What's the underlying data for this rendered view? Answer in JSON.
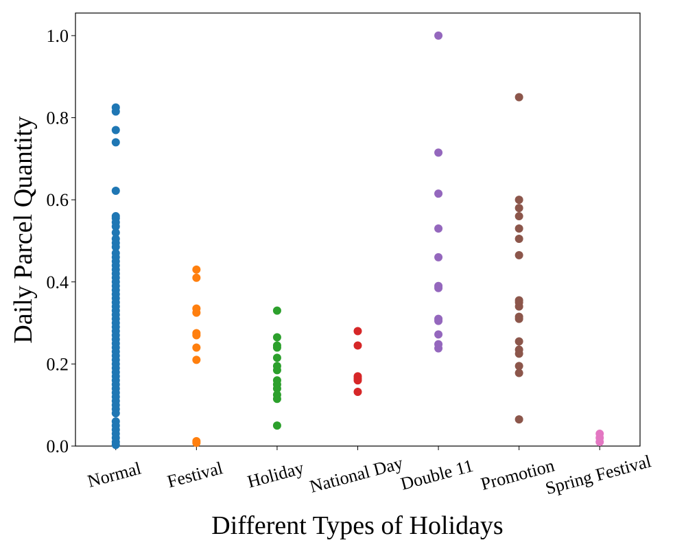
{
  "chart_data": {
    "type": "scatter",
    "xlabel": "Different Types of Holidays",
    "ylabel": "Daily Parcel Quantity",
    "categories": [
      "Normal",
      "Festival",
      "Holiday",
      "National Day",
      "Double 11",
      "Promotion",
      "Spring Festival"
    ],
    "colors": [
      "#1f77b4",
      "#ff7f0e",
      "#2ca02c",
      "#d62728",
      "#9467bd",
      "#8c564b",
      "#e377c2"
    ],
    "values": [
      [
        0.825,
        0.815,
        0.77,
        0.74,
        0.622,
        0.56,
        0.555,
        0.545,
        0.535,
        0.52,
        0.505,
        0.495,
        0.485,
        0.47,
        0.46,
        0.45,
        0.44,
        0.43,
        0.42,
        0.41,
        0.4,
        0.39,
        0.38,
        0.37,
        0.36,
        0.35,
        0.34,
        0.33,
        0.32,
        0.31,
        0.3,
        0.29,
        0.28,
        0.27,
        0.26,
        0.25,
        0.24,
        0.23,
        0.22,
        0.21,
        0.2,
        0.19,
        0.18,
        0.17,
        0.16,
        0.15,
        0.14,
        0.13,
        0.12,
        0.11,
        0.1,
        0.09,
        0.08,
        0.06,
        0.05,
        0.04,
        0.03,
        0.02,
        0.01,
        0.003
      ],
      [
        0.43,
        0.41,
        0.335,
        0.325,
        0.275,
        0.27,
        0.24,
        0.21,
        0.012,
        0.008
      ],
      [
        0.33,
        0.265,
        0.245,
        0.24,
        0.215,
        0.195,
        0.185,
        0.16,
        0.15,
        0.14,
        0.125,
        0.115,
        0.05
      ],
      [
        0.28,
        0.245,
        0.17,
        0.165,
        0.16,
        0.132
      ],
      [
        1.0,
        0.715,
        0.615,
        0.53,
        0.46,
        0.39,
        0.385,
        0.31,
        0.305,
        0.272,
        0.248,
        0.238
      ],
      [
        0.85,
        0.6,
        0.58,
        0.56,
        0.53,
        0.505,
        0.465,
        0.355,
        0.35,
        0.34,
        0.315,
        0.31,
        0.255,
        0.235,
        0.225,
        0.195,
        0.178,
        0.065
      ],
      [
        0.03,
        0.02,
        0.01
      ]
    ],
    "ylim": [
      0,
      1.055
    ],
    "yticks": [
      {
        "value": 0,
        "label": "0.0"
      },
      0.2,
      0.4,
      0.6,
      0.8,
      {
        "value": 1,
        "label": "1.0"
      }
    ],
    "grid": false
  }
}
